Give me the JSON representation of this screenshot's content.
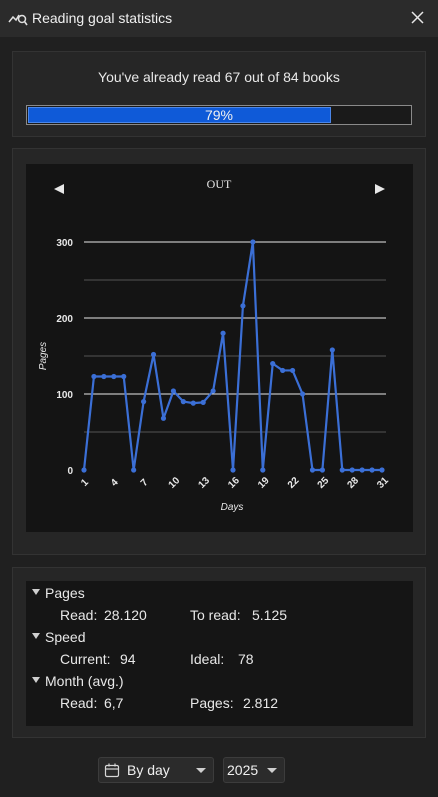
{
  "window": {
    "title": "Reading goal statistics",
    "app_icon": "statistics-search-icon",
    "close_icon": "close-icon"
  },
  "goal": {
    "text": "You've already read 67 out of 84 books",
    "progress_label": "79%",
    "progress_fraction": 0.79
  },
  "chart_nav": {
    "label": "OUT",
    "prev_icon": "triangle-left-icon",
    "next_icon": "triangle-right-icon"
  },
  "chart_data": {
    "type": "line",
    "xlabel": "Days",
    "ylabel": "Pages",
    "ylim": [
      0,
      300
    ],
    "yticks": [
      0,
      100,
      200,
      300
    ],
    "xticks": [
      1,
      4,
      7,
      10,
      13,
      16,
      19,
      22,
      25,
      28,
      31
    ],
    "grid": true,
    "series": [
      {
        "color": "#3b6fd6",
        "x": [
          1,
          2,
          3,
          4,
          5,
          6,
          7,
          8,
          9,
          10,
          11,
          12,
          13,
          14,
          15,
          16,
          17,
          18,
          19,
          20,
          21,
          22,
          23,
          24,
          25,
          26,
          27,
          28,
          29,
          30,
          31
        ],
        "values": [
          0,
          123,
          123,
          123,
          123,
          0,
          90,
          152,
          68,
          104,
          90,
          88,
          89,
          104,
          180,
          0,
          216,
          300,
          0,
          140,
          131,
          131,
          100,
          0,
          0,
          158,
          0,
          0,
          0,
          0,
          0
        ]
      }
    ]
  },
  "stats": {
    "pages": {
      "heading": "Pages",
      "read_label": "Read:",
      "read_value": "28.120",
      "to_read_label": "To read:",
      "to_read_value": "5.125"
    },
    "speed": {
      "heading": "Speed",
      "current_label": "Current:",
      "current_value": "94",
      "ideal_label": "Ideal:",
      "ideal_value": "78"
    },
    "month": {
      "heading": "Month (avg.)",
      "read_label": "Read:",
      "read_value": "6,7",
      "pages_label": "Pages:",
      "pages_value": "2.812"
    }
  },
  "controls": {
    "period_selected": "By day",
    "period_icon": "calendar-icon",
    "year_selected": "2025"
  }
}
